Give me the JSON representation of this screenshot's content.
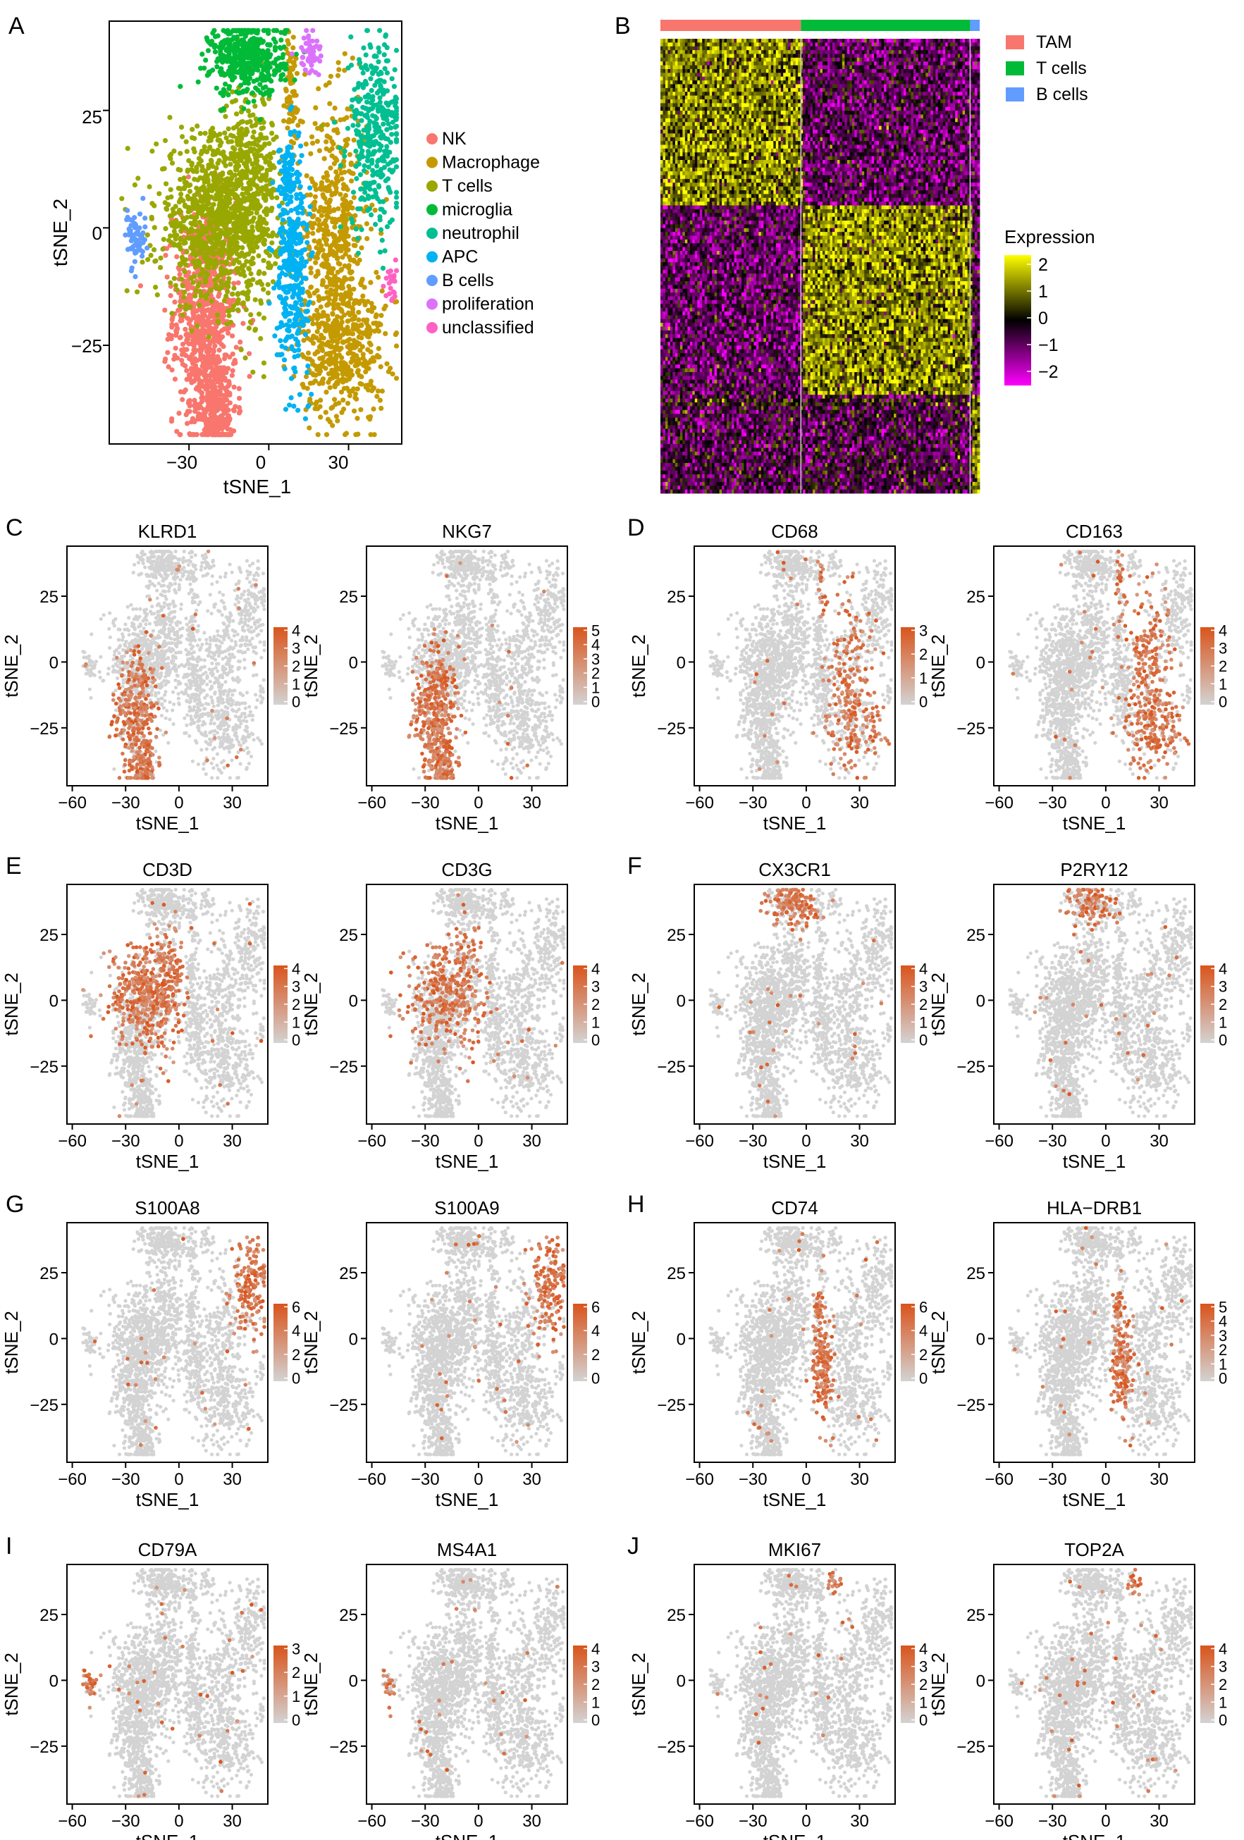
{
  "chart_data": [
    {
      "panel": "A",
      "type": "scatter",
      "xlabel": "tSNE_1",
      "ylabel": "tSNE_2",
      "xlim": [
        -60,
        50
      ],
      "ylim": [
        -46,
        44
      ],
      "x_ticks": [
        -30,
        0,
        30
      ],
      "y_ticks": [
        25,
        0,
        -25
      ],
      "legend_position": "right",
      "series": [
        {
          "name": "NK",
          "color": "#F8766D",
          "blobs": [
            [
              -24,
              -18,
              6,
              12,
              800
            ],
            [
              -20,
              -38,
              4,
              6,
              300
            ]
          ]
        },
        {
          "name": "Macrophage",
          "color": "#C49A00",
          "blobs": [
            [
              25,
              0,
              6,
              14,
              500
            ],
            [
              28,
              -25,
              8,
              8,
              450
            ],
            [
              8,
              28,
              2,
              8,
              80
            ]
          ]
        },
        {
          "name": "T cells",
          "color": "#99A800",
          "blobs": [
            [
              -20,
              2,
              11,
              9,
              900
            ],
            [
              -7,
              7,
              5,
              11,
              400
            ]
          ]
        },
        {
          "name": "microglia",
          "color": "#00BA38",
          "blobs": [
            [
              -8,
              36,
              7,
              4,
              450
            ]
          ]
        },
        {
          "name": "neutrophil",
          "color": "#00BF92",
          "blobs": [
            [
              40,
              20,
              5,
              10,
              350
            ]
          ]
        },
        {
          "name": "APC",
          "color": "#00B2F3",
          "blobs": [
            [
              9,
              -8,
              3,
              11,
              350
            ],
            [
              7,
              12,
              1.5,
              4,
              60
            ]
          ]
        },
        {
          "name": "B cells",
          "color": "#619CFF",
          "blobs": [
            [
              -50,
              -2,
              2,
              3,
              60
            ]
          ]
        },
        {
          "name": "proliferation",
          "color": "#DB72FB",
          "blobs": [
            [
              15,
              37,
              2,
              2.5,
              50
            ]
          ]
        },
        {
          "name": "unclassified",
          "color": "#FF61C3",
          "blobs": [
            [
              46,
              -12,
              1,
              2,
              25
            ]
          ]
        }
      ]
    },
    {
      "panel": "B",
      "type": "heatmap",
      "groups": [
        {
          "name": "TAM",
          "color": "#F8766D",
          "fraction": 0.44
        },
        {
          "name": "T cells",
          "color": "#00BA38",
          "fraction": 0.53
        },
        {
          "name": "B cells",
          "color": "#619CFF",
          "fraction": 0.03
        }
      ],
      "color_scale": {
        "title": "Expression",
        "ticks": [
          "2",
          "1",
          "0",
          "−1",
          "−2"
        ],
        "colors": [
          "#FFFF00",
          "#000000",
          "#FF00FF"
        ],
        "range": [
          -2.5,
          2.5
        ]
      }
    }
  ],
  "feature_panels": [
    {
      "letter": "C",
      "genes": [
        {
          "name": "KLRD1",
          "ticks": [
            "4",
            "3",
            "2",
            "1",
            "0"
          ],
          "max": 4,
          "region": "NK",
          "density": 0.7
        },
        {
          "name": "NKG7",
          "ticks": [
            "5",
            "4",
            "3",
            "2",
            "1",
            "0"
          ],
          "max": 5,
          "region": "NK",
          "density": 0.9
        }
      ]
    },
    {
      "letter": "D",
      "genes": [
        {
          "name": "CD68",
          "ticks": [
            "3",
            "2",
            "1",
            "0"
          ],
          "max": 3,
          "region": "Macrophage",
          "density": 0.5
        },
        {
          "name": "CD163",
          "ticks": [
            "4",
            "3",
            "2",
            "1",
            "0"
          ],
          "max": 4,
          "region": "Macrophage",
          "density": 0.7
        }
      ]
    },
    {
      "letter": "E",
      "genes": [
        {
          "name": "CD3D",
          "ticks": [
            "4",
            "3",
            "2",
            "1",
            "0"
          ],
          "max": 4,
          "region": "T cells",
          "density": 0.75
        },
        {
          "name": "CD3G",
          "ticks": [
            "4",
            "3",
            "2",
            "1",
            "0"
          ],
          "max": 4,
          "region": "T cells",
          "density": 0.55
        }
      ]
    },
    {
      "letter": "F",
      "genes": [
        {
          "name": "CX3CR1",
          "ticks": [
            "4",
            "3",
            "2",
            "1",
            "0"
          ],
          "max": 4,
          "region": "microglia",
          "density": 0.6
        },
        {
          "name": "P2RY12",
          "ticks": [
            "4",
            "3",
            "2",
            "1",
            "0"
          ],
          "max": 4,
          "region": "microglia",
          "density": 0.5
        }
      ]
    },
    {
      "letter": "G",
      "genes": [
        {
          "name": "S100A8",
          "ticks": [
            "6",
            "4",
            "2",
            "0"
          ],
          "max": 6,
          "region": "neutrophil",
          "density": 0.9
        },
        {
          "name": "S100A9",
          "ticks": [
            "6",
            "4",
            "2",
            "0"
          ],
          "max": 6,
          "region": "neutrophil",
          "density": 0.9
        }
      ]
    },
    {
      "letter": "H",
      "genes": [
        {
          "name": "CD74",
          "ticks": [
            "6",
            "4",
            "2",
            "0"
          ],
          "max": 6,
          "region": "APC",
          "density": 0.85
        },
        {
          "name": "HLA−DRB1",
          "ticks": [
            "5",
            "4",
            "3",
            "2",
            "1",
            "0"
          ],
          "max": 5,
          "region": "APC",
          "density": 0.8
        }
      ]
    },
    {
      "letter": "I",
      "genes": [
        {
          "name": "CD79A",
          "ticks": [
            "3",
            "2",
            "1",
            "0"
          ],
          "max": 3,
          "region": "B cells",
          "density": 0.8
        },
        {
          "name": "MS4A1",
          "ticks": [
            "4",
            "3",
            "2",
            "1",
            "0"
          ],
          "max": 4,
          "region": "B cells",
          "density": 0.8
        }
      ]
    },
    {
      "letter": "J",
      "genes": [
        {
          "name": "MKI67",
          "ticks": [
            "4",
            "3",
            "2",
            "1",
            "0"
          ],
          "max": 4,
          "region": "proliferation",
          "density": 0.8
        },
        {
          "name": "TOP2A",
          "ticks": [
            "4",
            "3",
            "2",
            "1",
            "0"
          ],
          "max": 4,
          "region": "proliferation",
          "density": 0.8
        }
      ]
    }
  ],
  "feature_axes": {
    "xlabel": "tSNE_1",
    "ylabel": "tSNE_2",
    "x_ticks": [
      "−60",
      "−30",
      "0",
      "30"
    ],
    "y_ticks": [
      "25",
      "0",
      "−25"
    ],
    "xlim": [
      -63,
      50
    ],
    "ylim": [
      -47,
      44
    ],
    "high_color": "#D9541C",
    "low_color": "#D3D3D3"
  },
  "panel_letters": [
    "A",
    "B"
  ],
  "tick_text": {
    "a_x": [
      "−30",
      "0",
      "30"
    ],
    "a_y": [
      "25",
      "0",
      "−25"
    ]
  }
}
